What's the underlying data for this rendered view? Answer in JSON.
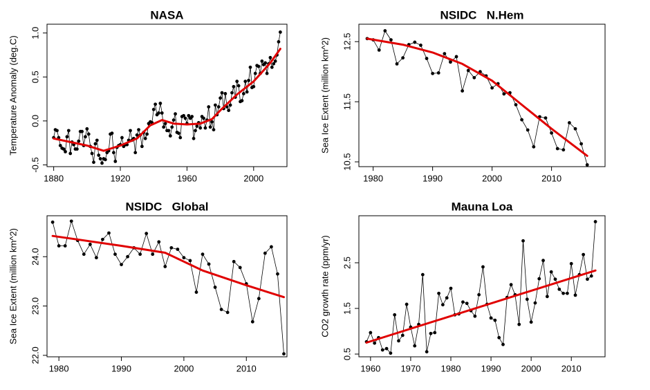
{
  "chart_data": [
    {
      "type": "line",
      "title": "NASA",
      "y_label": "Temperature Anomaly (deg.C)",
      "color": "#000000",
      "x": [
        1880,
        1881,
        1882,
        1883,
        1884,
        1885,
        1886,
        1887,
        1888,
        1889,
        1890,
        1891,
        1892,
        1893,
        1894,
        1895,
        1896,
        1897,
        1898,
        1899,
        1900,
        1901,
        1902,
        1903,
        1904,
        1905,
        1906,
        1907,
        1908,
        1909,
        1910,
        1911,
        1912,
        1913,
        1914,
        1915,
        1916,
        1917,
        1918,
        1919,
        1920,
        1921,
        1922,
        1923,
        1924,
        1925,
        1926,
        1927,
        1928,
        1929,
        1930,
        1931,
        1932,
        1933,
        1934,
        1935,
        1936,
        1937,
        1938,
        1939,
        1940,
        1941,
        1942,
        1943,
        1944,
        1945,
        1946,
        1947,
        1948,
        1949,
        1950,
        1951,
        1952,
        1953,
        1954,
        1955,
        1956,
        1957,
        1958,
        1959,
        1960,
        1961,
        1962,
        1963,
        1964,
        1965,
        1966,
        1967,
        1968,
        1969,
        1970,
        1971,
        1972,
        1973,
        1974,
        1975,
        1976,
        1977,
        1978,
        1979,
        1980,
        1981,
        1982,
        1983,
        1984,
        1985,
        1986,
        1987,
        1988,
        1989,
        1990,
        1991,
        1992,
        1993,
        1994,
        1995,
        1996,
        1997,
        1998,
        1999,
        2000,
        2001,
        2002,
        2003,
        2004,
        2005,
        2006,
        2007,
        2008,
        2009,
        2010,
        2011,
        2012,
        2013,
        2014,
        2015,
        2016
      ],
      "values": [
        -0.19,
        -0.1,
        -0.11,
        -0.19,
        -0.28,
        -0.31,
        -0.32,
        -0.35,
        -0.18,
        -0.11,
        -0.37,
        -0.24,
        -0.27,
        -0.32,
        -0.32,
        -0.23,
        -0.12,
        -0.12,
        -0.28,
        -0.18,
        -0.09,
        -0.15,
        -0.29,
        -0.37,
        -0.47,
        -0.26,
        -0.22,
        -0.39,
        -0.43,
        -0.48,
        -0.43,
        -0.44,
        -0.36,
        -0.34,
        -0.15,
        -0.14,
        -0.36,
        -0.46,
        -0.3,
        -0.28,
        -0.27,
        -0.19,
        -0.29,
        -0.27,
        -0.27,
        -0.22,
        -0.11,
        -0.22,
        -0.2,
        -0.36,
        -0.16,
        -0.1,
        -0.16,
        -0.29,
        -0.13,
        -0.2,
        -0.15,
        -0.03,
        -0.01,
        -0.02,
        0.13,
        0.19,
        0.07,
        0.09,
        0.2,
        0.09,
        -0.07,
        -0.03,
        -0.11,
        -0.11,
        -0.17,
        -0.07,
        0.01,
        0.08,
        -0.13,
        -0.14,
        -0.19,
        0.05,
        0.06,
        0.03,
        -0.03,
        0.06,
        0.03,
        0.05,
        -0.2,
        -0.11,
        -0.06,
        -0.02,
        -0.08,
        0.05,
        0.03,
        -0.08,
        0.01,
        0.16,
        -0.07,
        -0.01,
        -0.1,
        0.18,
        0.07,
        0.16,
        0.26,
        0.32,
        0.14,
        0.31,
        0.16,
        0.12,
        0.18,
        0.32,
        0.39,
        0.27,
        0.45,
        0.4,
        0.22,
        0.23,
        0.31,
        0.45,
        0.33,
        0.46,
        0.61,
        0.38,
        0.39,
        0.54,
        0.63,
        0.62,
        0.54,
        0.68,
        0.64,
        0.66,
        0.54,
        0.65,
        0.72,
        0.61,
        0.65,
        0.68,
        0.75,
        0.9,
        1.01
      ],
      "trend": {
        "color": "#e00000",
        "x": [
          1880,
          1890,
          1900,
          1910,
          1920,
          1930,
          1938,
          1945,
          1952,
          1960,
          1968,
          1975,
          1980,
          1990,
          2000,
          2010,
          2016
        ],
        "values": [
          -0.2,
          -0.24,
          -0.28,
          -0.34,
          -0.28,
          -0.2,
          -0.05,
          0.01,
          -0.03,
          -0.04,
          -0.03,
          0.02,
          0.12,
          0.3,
          0.45,
          0.66,
          0.82
        ]
      },
      "xlim": [
        1876,
        2020
      ],
      "ylim": [
        -0.52,
        1.1
      ],
      "xticks": [
        1880,
        1920,
        1960,
        2000
      ],
      "yticks": [
        -0.5,
        {
          "value": 0,
          "label": "0.0"
        },
        0.5,
        {
          "value": 1,
          "label": "1.0"
        }
      ]
    },
    {
      "type": "line",
      "title": "NSIDC   N.Hem",
      "y_label": "Sea Ice Extent (million km^2)",
      "color": "#000000",
      "x": [
        1979,
        1980,
        1981,
        1982,
        1983,
        1984,
        1985,
        1986,
        1987,
        1988,
        1989,
        1990,
        1991,
        1992,
        1993,
        1994,
        1995,
        1996,
        1997,
        1998,
        1999,
        2000,
        2001,
        2002,
        2003,
        2004,
        2005,
        2006,
        2007,
        2008,
        2009,
        2010,
        2011,
        2012,
        2013,
        2014,
        2015,
        2016
      ],
      "values": [
        12.55,
        12.53,
        12.36,
        12.68,
        12.53,
        12.13,
        12.23,
        12.45,
        12.49,
        12.44,
        12.22,
        11.97,
        11.98,
        12.3,
        12.16,
        12.25,
        11.68,
        12.02,
        11.9,
        12.0,
        11.93,
        11.73,
        11.8,
        11.63,
        11.65,
        11.45,
        11.2,
        11.03,
        10.75,
        11.25,
        11.23,
        10.98,
        10.72,
        10.7,
        11.15,
        11.05,
        10.8,
        10.45
      ],
      "trend": {
        "color": "#e00000",
        "x": [
          1979,
          1985,
          1990,
          1995,
          2000,
          2005,
          2010,
          2016
        ],
        "values": [
          12.55,
          12.45,
          12.32,
          12.13,
          11.85,
          11.45,
          11.05,
          10.6
        ]
      },
      "xlim": [
        1977.6,
        2019
      ],
      "ylim": [
        10.42,
        12.79
      ],
      "xticks": [
        1980,
        1990,
        2000,
        2010
      ],
      "yticks": [
        10.5,
        11.5,
        12.5
      ]
    },
    {
      "type": "line",
      "title": "NSIDC   Global",
      "y_label": "Sea Ice Extent (million km^2)",
      "color": "#000000",
      "x": [
        1979,
        1980,
        1981,
        1982,
        1983,
        1984,
        1985,
        1986,
        1987,
        1988,
        1989,
        1990,
        1991,
        1992,
        1993,
        1994,
        1995,
        1996,
        1997,
        1998,
        1999,
        2000,
        2001,
        2002,
        2003,
        2004,
        2005,
        2006,
        2007,
        2008,
        2009,
        2010,
        2011,
        2012,
        2013,
        2014,
        2015,
        2016
      ],
      "values": [
        24.7,
        24.22,
        24.22,
        24.72,
        24.33,
        24.05,
        24.25,
        23.98,
        24.35,
        24.48,
        24.05,
        23.84,
        24.0,
        24.18,
        24.05,
        24.47,
        24.05,
        24.3,
        23.8,
        24.18,
        24.15,
        23.98,
        23.92,
        23.28,
        24.05,
        23.85,
        23.38,
        22.93,
        22.87,
        23.9,
        23.78,
        23.45,
        22.68,
        23.15,
        24.07,
        24.2,
        23.65,
        22.03
      ],
      "trend": {
        "color": "#e00000",
        "x": [
          1979,
          1990,
          1997,
          2000,
          2003,
          2010,
          2016
        ],
        "values": [
          24.42,
          24.22,
          24.08,
          23.9,
          23.72,
          23.42,
          23.18
        ]
      },
      "xlim": [
        1978.1,
        2016.5
      ],
      "ylim": [
        21.97,
        24.83
      ],
      "xticks": [
        1980,
        1990,
        2000,
        2010
      ],
      "yticks": [
        {
          "value": 22,
          "label": "22.0"
        },
        {
          "value": 23,
          "label": "23.0"
        },
        {
          "value": 24,
          "label": "24.0"
        }
      ]
    },
    {
      "type": "line",
      "title": "Mauna Loa",
      "y_label": "CO2 growth rate (ppm/yr)",
      "color": "#000000",
      "x": [
        1959,
        1960,
        1961,
        1962,
        1963,
        1964,
        1965,
        1966,
        1967,
        1968,
        1969,
        1970,
        1971,
        1972,
        1973,
        1974,
        1975,
        1976,
        1977,
        1978,
        1979,
        1980,
        1981,
        1982,
        1983,
        1984,
        1985,
        1986,
        1987,
        1988,
        1989,
        1990,
        1991,
        1992,
        1993,
        1994,
        1995,
        1996,
        1997,
        1998,
        1999,
        2000,
        2001,
        2002,
        2003,
        2004,
        2005,
        2006,
        2007,
        2008,
        2009,
        2010,
        2011,
        2012,
        2013,
        2014,
        2015,
        2016
      ],
      "values": [
        0.77,
        0.97,
        0.74,
        0.86,
        0.59,
        0.62,
        0.52,
        1.36,
        0.79,
        0.91,
        1.59,
        1.09,
        0.68,
        1.15,
        2.24,
        0.55,
        0.95,
        0.97,
        1.83,
        1.58,
        1.73,
        1.94,
        1.36,
        1.38,
        1.64,
        1.61,
        1.45,
        1.33,
        1.8,
        2.41,
        1.59,
        1.29,
        1.24,
        0.86,
        0.71,
        1.74,
        2.02,
        1.8,
        1.15,
        2.98,
        1.7,
        1.2,
        1.62,
        2.15,
        2.55,
        1.76,
        2.3,
        2.14,
        1.92,
        1.83,
        1.83,
        2.48,
        1.79,
        2.24,
        2.68,
        2.14,
        2.21,
        3.4
      ],
      "trend": {
        "color": "#e00000",
        "x": [
          1959,
          2016
        ],
        "values": [
          0.75,
          2.33
        ]
      },
      "xlim": [
        1957.1,
        2018.4
      ],
      "ylim": [
        0.44,
        3.53
      ],
      "xticks": [
        1960,
        1970,
        1980,
        1990,
        2000,
        2010
      ],
      "yticks": [
        0.5,
        1.5,
        2.5
      ]
    }
  ]
}
